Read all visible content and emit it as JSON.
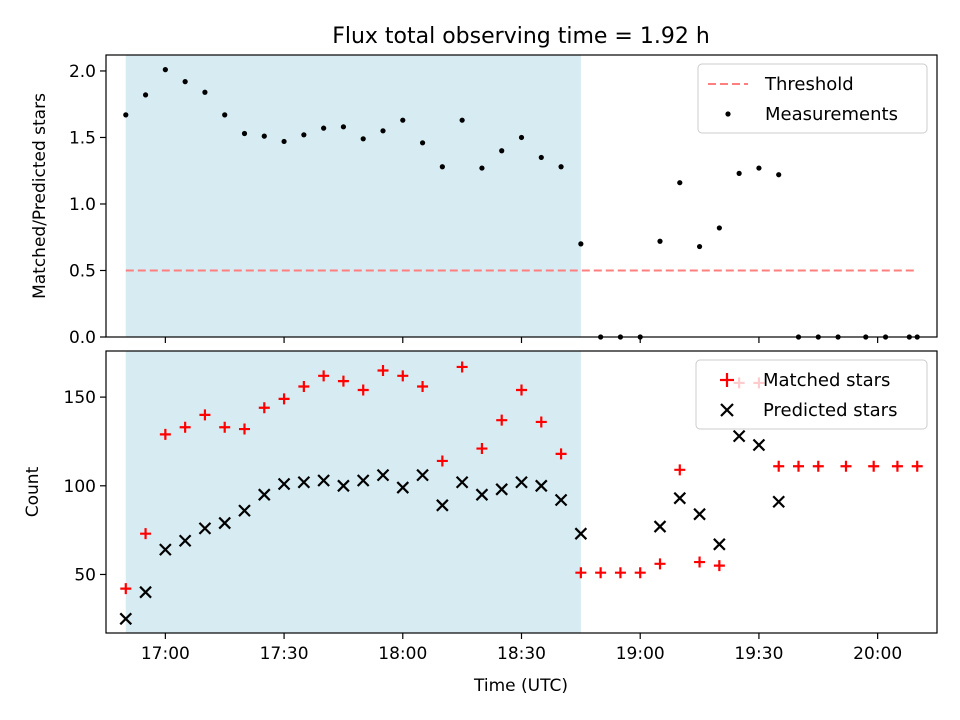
{
  "chart_data": [
    {
      "type": "scatter",
      "title": "Flux total observing time = 1.92 h",
      "xlabel": "",
      "ylabel": "Matched/Predicted stars",
      "xlim": [
        1005,
        1215
      ],
      "ylim": [
        0,
        2.12
      ],
      "yticks": [
        0.0,
        0.5,
        1.0,
        1.5,
        2.0
      ],
      "ytick_labels": [
        "0.0",
        "0.5",
        "1.0",
        "1.5",
        "2.0"
      ],
      "shaded_span": [
        1010,
        1125
      ],
      "series": [
        {
          "name": "Threshold",
          "kind": "line",
          "style": "dashed",
          "color": "#ff7f7f",
          "points": [
            [
              1010,
              0.5
            ],
            [
              1210,
              0.5
            ]
          ]
        },
        {
          "name": "Measurements",
          "kind": "dots",
          "color": "#000000",
          "x": [
            1010,
            1015,
            1020,
            1025,
            1030,
            1035,
            1040,
            1045,
            1050,
            1055,
            1060,
            1065,
            1070,
            1075,
            1080,
            1085,
            1090,
            1095,
            1100,
            1105,
            1110,
            1115,
            1120,
            1125,
            1130,
            1135,
            1140,
            1145,
            1150,
            1155,
            1160,
            1165,
            1170,
            1175,
            1180,
            1185,
            1190,
            1197,
            1202,
            1208,
            1210
          ],
          "y": [
            1.67,
            1.82,
            2.01,
            1.92,
            1.84,
            1.67,
            1.53,
            1.51,
            1.47,
            1.52,
            1.57,
            1.58,
            1.49,
            1.55,
            1.63,
            1.46,
            1.28,
            1.63,
            1.27,
            1.4,
            1.5,
            1.35,
            1.28,
            0.7,
            0.0,
            0.0,
            0.0,
            0.72,
            1.16,
            0.68,
            0.82,
            1.23,
            1.27,
            1.22,
            0.0,
            0.0,
            0.0,
            0.0,
            0.0,
            0.0,
            0.0
          ]
        }
      ],
      "legend": {
        "position": "top-right",
        "entries": [
          "Threshold",
          "Measurements"
        ]
      }
    },
    {
      "type": "scatter",
      "title": "",
      "xlabel": "Time (UTC)",
      "ylabel": "Count",
      "xlim": [
        1005,
        1215
      ],
      "ylim": [
        17,
        176
      ],
      "yticks": [
        50,
        100,
        150
      ],
      "ytick_labels": [
        "50",
        "100",
        "150"
      ],
      "xticks": [
        1020,
        1050,
        1080,
        1110,
        1140,
        1170,
        1200
      ],
      "xtick_labels": [
        "17:00",
        "17:30",
        "18:00",
        "18:30",
        "19:00",
        "19:30",
        "20:00"
      ],
      "shaded_span": [
        1010,
        1125
      ],
      "series": [
        {
          "name": "Matched stars",
          "marker": "plus",
          "color": "#ff0000",
          "x": [
            1010,
            1015,
            1020,
            1025,
            1030,
            1035,
            1040,
            1045,
            1050,
            1055,
            1060,
            1065,
            1070,
            1075,
            1080,
            1085,
            1090,
            1095,
            1100,
            1105,
            1110,
            1115,
            1120,
            1125,
            1130,
            1135,
            1140,
            1145,
            1150,
            1155,
            1160,
            1165,
            1170,
            1175,
            1180,
            1185,
            1192,
            1199,
            1205,
            1210
          ],
          "y": [
            42,
            73,
            129,
            133,
            140,
            133,
            132,
            144,
            149,
            156,
            162,
            159,
            154,
            165,
            162,
            156,
            114,
            167,
            121,
            137,
            154,
            136,
            118,
            51,
            51,
            51,
            51,
            56,
            109,
            57,
            55,
            158,
            158,
            111,
            111,
            111,
            111,
            111,
            111,
            111
          ]
        },
        {
          "name": "Predicted stars",
          "marker": "x",
          "color": "#000000",
          "x": [
            1010,
            1015,
            1020,
            1025,
            1030,
            1035,
            1040,
            1045,
            1050,
            1055,
            1060,
            1065,
            1070,
            1075,
            1080,
            1085,
            1090,
            1095,
            1100,
            1105,
            1110,
            1115,
            1120,
            1125,
            1145,
            1150,
            1155,
            1160,
            1165,
            1170,
            1175
          ],
          "y": [
            25,
            40,
            64,
            69,
            76,
            79,
            86,
            95,
            101,
            102,
            103,
            100,
            103,
            106,
            99,
            106,
            89,
            102,
            95,
            98,
            102,
            100,
            92,
            73,
            77,
            93,
            84,
            67,
            128,
            123,
            91
          ]
        }
      ],
      "legend": {
        "position": "top-right",
        "entries": [
          "Matched stars",
          "Predicted stars"
        ]
      }
    }
  ]
}
